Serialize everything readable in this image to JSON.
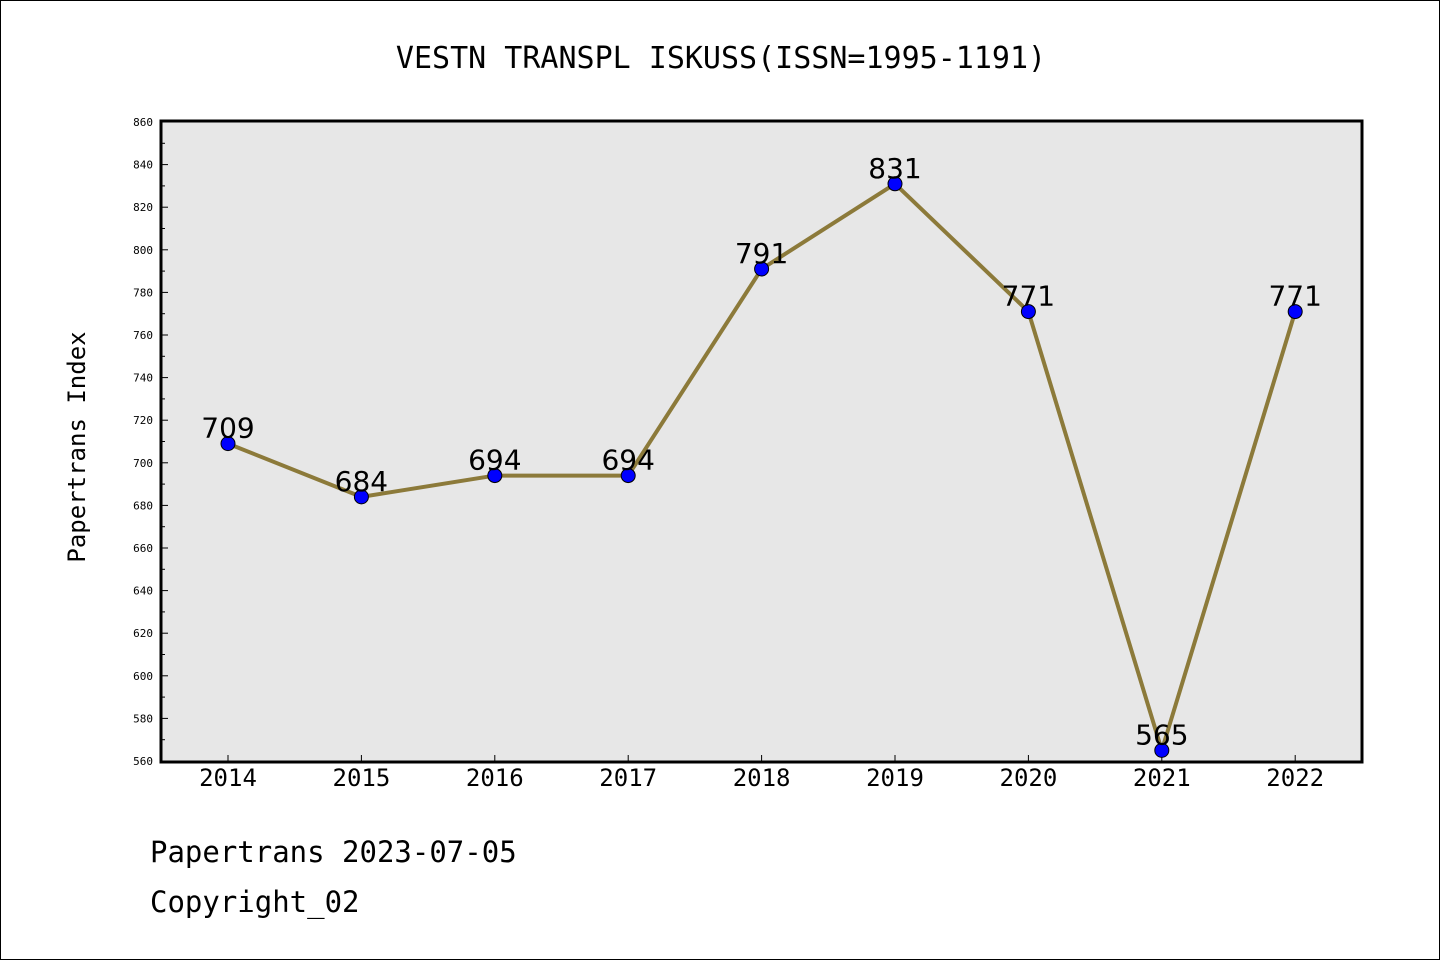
{
  "chart_data": {
    "type": "line",
    "title": "VESTN TRANSPL ISKUSS(ISSN=1995-1191)",
    "xlabel": "",
    "ylabel": "Papertrans Index",
    "categories": [
      "2014",
      "2015",
      "2016",
      "2017",
      "2018",
      "2019",
      "2020",
      "2021",
      "2022"
    ],
    "series": [
      {
        "values": [
          709,
          684,
          694,
          694,
          791,
          831,
          771,
          565,
          771
        ],
        "data_labels": [
          "709",
          "684",
          "694",
          "694",
          "791",
          "831",
          "771",
          "565",
          "771"
        ]
      }
    ],
    "ylim": [
      560,
      860
    ],
    "y_ticks": [
      "560",
      "580",
      "600",
      "620",
      "640",
      "660",
      "680",
      "700",
      "720",
      "740",
      "760",
      "780",
      "800",
      "820",
      "840",
      "860"
    ],
    "grid": false,
    "legend": "none",
    "colors": {
      "line": "#8c7a3a",
      "marker": "#0000ff",
      "plot_background": "#e7e7e7",
      "axes": "#000000"
    }
  },
  "footer": {
    "line1": "Papertrans 2023-07-05",
    "line2": "Copyright_02"
  }
}
